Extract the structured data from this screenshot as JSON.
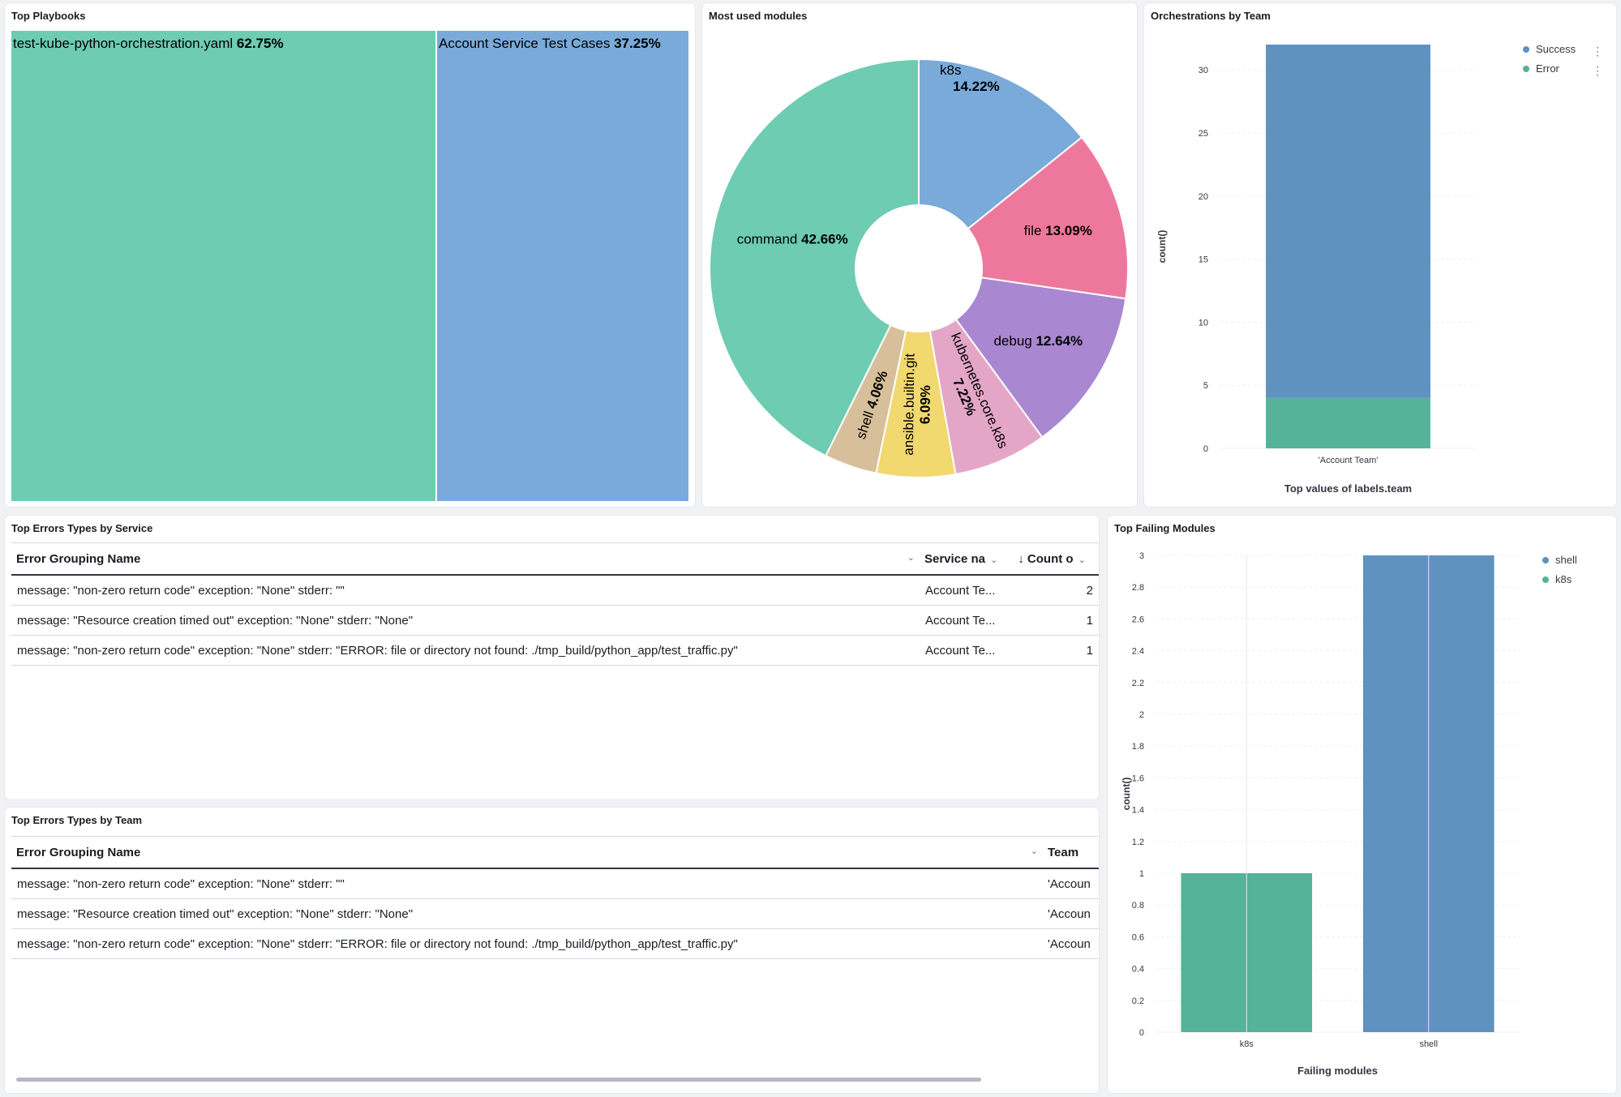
{
  "panels": {
    "top_playbooks": {
      "title": "Top Playbooks"
    },
    "modules": {
      "title": "Most used modules"
    },
    "orchestrations": {
      "title": "Orchestrations by Team"
    },
    "errors_service": {
      "title": "Top Errors Types by Service",
      "columns": [
        "Error Grouping Name",
        "Service na",
        "Count o"
      ],
      "rows": [
        [
          "message: \"non-zero return code\" exception: \"None\" stderr: \"\"",
          "Account Te...",
          "2"
        ],
        [
          "message: \"Resource creation timed out\" exception: \"None\" stderr: \"None\"",
          "Account Te...",
          "1"
        ],
        [
          "message: \"non-zero return code\" exception: \"None\" stderr: \"ERROR: file or directory not found: ./tmp_build/python_app/test_traffic.py\"",
          "Account Te...",
          "1"
        ]
      ]
    },
    "errors_team": {
      "title": "Top Errors Types by Team",
      "columns": [
        "Error Grouping Name",
        "Team"
      ],
      "rows": [
        [
          "message: \"non-zero return code\" exception: \"None\" stderr: \"\"",
          "'Accoun"
        ],
        [
          "message: \"Resource creation timed out\" exception: \"None\" stderr: \"None\"",
          "'Accoun"
        ],
        [
          "message: \"non-zero return code\" exception: \"None\" stderr: \"ERROR: file or directory not found: ./tmp_build/python_app/test_traffic.py\"",
          "'Accoun"
        ]
      ]
    },
    "failing": {
      "title": "Top Failing Modules"
    }
  },
  "colors": {
    "green": "#54b399",
    "blue": "#6092c0",
    "treemap_green": "#6dccb1",
    "treemap_blue": "#79aad9",
    "pink": "#ee789d",
    "purple": "#a987d1",
    "lightpink": "#e4a6c7",
    "yellow": "#f1d86f",
    "tan": "#d6bf9a"
  },
  "chart_data": [
    {
      "type": "treemap",
      "title": "Top Playbooks",
      "items": [
        {
          "name": "test-kube-python-orchestration.yaml",
          "value": 62.75,
          "label": "62.75%"
        },
        {
          "name": "Account Service Test Cases",
          "value": 37.25,
          "label": "37.25%"
        }
      ]
    },
    {
      "type": "pie",
      "title": "Most used modules",
      "slices": [
        {
          "name": "k8s",
          "value": 14.22,
          "label": "14.22%",
          "color": "#79aad9"
        },
        {
          "name": "file",
          "value": 13.09,
          "label": "13.09%",
          "color": "#ee789d"
        },
        {
          "name": "debug",
          "value": 12.64,
          "label": "12.64%",
          "color": "#a987d1"
        },
        {
          "name": "kubernetes.core.k8s",
          "value": 7.22,
          "label": "7.22%",
          "color": "#e4a6c7"
        },
        {
          "name": "ansible.builtin.git",
          "value": 6.09,
          "label": "6.09%",
          "color": "#f1d86f"
        },
        {
          "name": "shell",
          "value": 4.06,
          "label": "4.06%",
          "color": "#d6bf9a"
        },
        {
          "name": "command",
          "value": 42.66,
          "label": "42.66%",
          "color": "#6dccb1"
        }
      ]
    },
    {
      "type": "bar",
      "stacked": true,
      "title": "Orchestrations by Team",
      "categories": [
        "'Account Team'"
      ],
      "series": [
        {
          "name": "Success",
          "values": [
            28
          ],
          "color": "#6092c0"
        },
        {
          "name": "Error",
          "values": [
            4
          ],
          "color": "#54b399"
        }
      ],
      "ylabel": "count()",
      "xlabel": "Top values of labels.team",
      "ylim": [
        0,
        32
      ],
      "yticks": [
        0,
        5,
        10,
        15,
        20,
        25,
        30
      ],
      "legend": "top-right",
      "grid": true
    },
    {
      "type": "bar",
      "title": "Top Failing Modules",
      "categories": [
        "k8s",
        "shell"
      ],
      "series": [
        {
          "name": "shell",
          "values": [
            0,
            3
          ],
          "color": "#6092c0"
        },
        {
          "name": "k8s",
          "values": [
            1,
            0
          ],
          "color": "#54b399"
        }
      ],
      "ylabel": "count()",
      "xlabel": "Failing modules",
      "ylim": [
        0,
        3
      ],
      "yticks": [
        "0",
        "0.2",
        "0.4",
        "0.6",
        "0.8",
        "1",
        "1.2",
        "1.4",
        "1.6",
        "1.8",
        "2",
        "2.2",
        "2.4",
        "2.6",
        "2.8",
        "3"
      ],
      "legend": "top-right",
      "grid": true
    }
  ]
}
